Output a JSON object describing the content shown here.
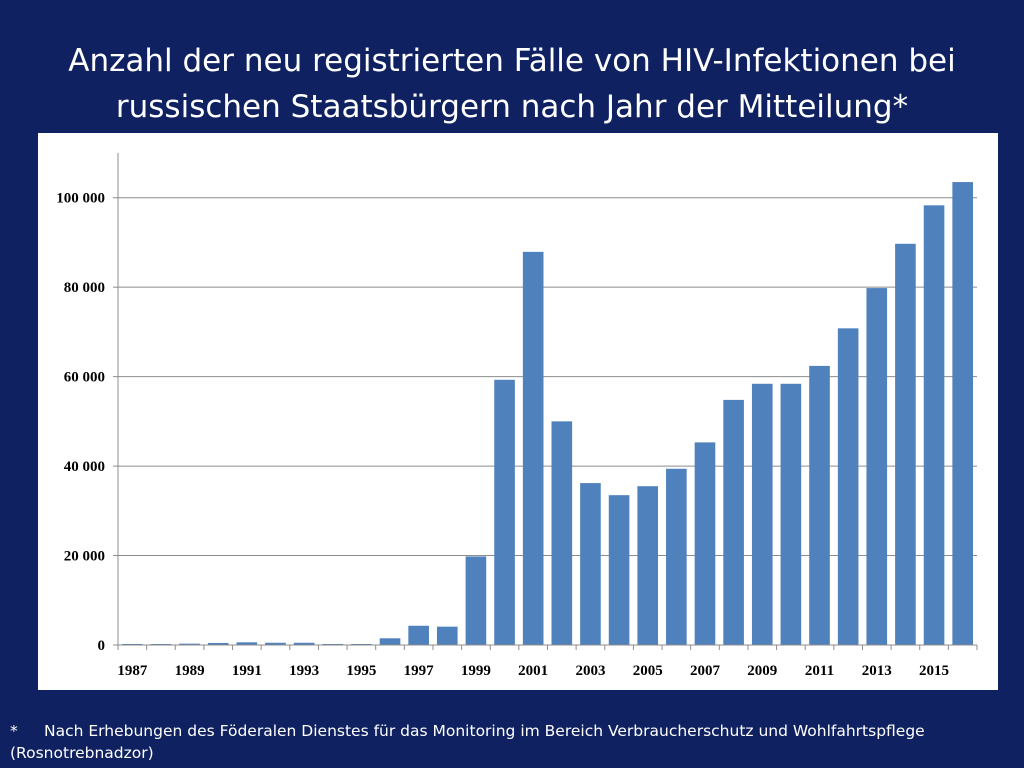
{
  "slide": {
    "title": "Anzahl der neu registrierten Fälle von HIV-Infektionen bei russischen Staatsbürgern nach Jahr der Mitteilung*",
    "footnote_marker": "*",
    "footnote": "Nach Erhebungen des Föderalen Dienstes für das Monitoring im Bereich Verbraucherschutz und Wohlfahrtspflege (Rosnotrebnadzor)"
  },
  "colors": {
    "background": "#0f2160",
    "bar": "#4f81bd",
    "gridline": "#8c8c8c"
  },
  "chart_data": {
    "type": "bar",
    "title": "",
    "xlabel": "",
    "ylabel": "",
    "ylim": [
      0,
      110000
    ],
    "yticks": [
      0,
      20000,
      40000,
      60000,
      80000,
      100000
    ],
    "ytick_labels": [
      "0",
      "20 000",
      "40 000",
      "60 000",
      "80 000",
      "100 000"
    ],
    "grid": true,
    "categories": [
      "1987",
      "1988",
      "1989",
      "1990",
      "1991",
      "1992",
      "1993",
      "1994",
      "1995",
      "1996",
      "1997",
      "1998",
      "1999",
      "2000",
      "2001",
      "2002",
      "2003",
      "2004",
      "2005",
      "2006",
      "2007",
      "2008",
      "2009",
      "2010",
      "2011",
      "2012",
      "2013",
      "2014",
      "2015",
      "2016"
    ],
    "xtick_labels": [
      "1987",
      "1989",
      "1991",
      "1993",
      "1995",
      "1997",
      "1999",
      "2001",
      "2003",
      "2005",
      "2007",
      "2009",
      "2011",
      "2013",
      "2015"
    ],
    "values": [
      130,
      100,
      300,
      450,
      600,
      500,
      500,
      200,
      200,
      1500,
      4300,
      4100,
      19800,
      59300,
      87900,
      50000,
      36200,
      33500,
      35500,
      39400,
      45300,
      54800,
      58400,
      58400,
      62400,
      70800,
      79800,
      89700,
      98300,
      103500
    ]
  }
}
